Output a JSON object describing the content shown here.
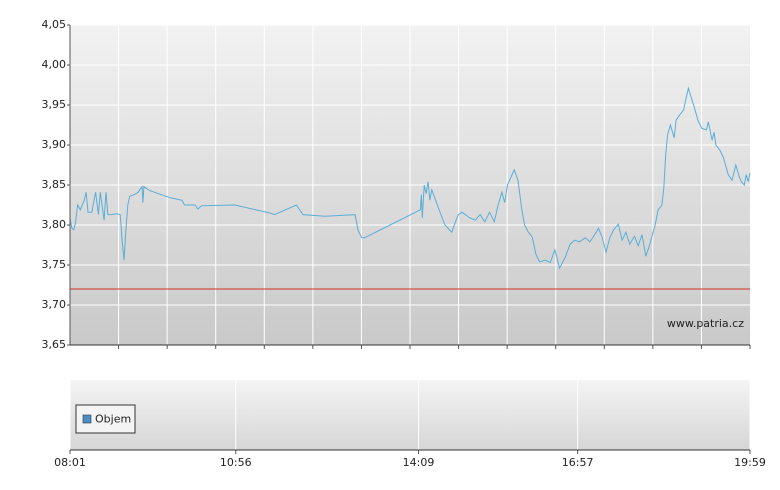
{
  "chart_data": [
    {
      "type": "line",
      "color": "#5aaed6",
      "grid": true,
      "xlim": [
        481,
        1199
      ],
      "ylim": [
        3.65,
        4.05
      ],
      "yticks": [
        {
          "value": 3.65,
          "label": "3,65"
        },
        {
          "value": 3.7,
          "label": "3,70"
        },
        {
          "value": 3.75,
          "label": "3,75"
        },
        {
          "value": 3.8,
          "label": "3,80"
        },
        {
          "value": 3.85,
          "label": "3,85"
        },
        {
          "value": 3.9,
          "label": "3,90"
        },
        {
          "value": 3.95,
          "label": "3,95"
        },
        {
          "value": 4.0,
          "label": "4,00"
        },
        {
          "value": 4.05,
          "label": "4,05"
        }
      ],
      "reference_line": {
        "value": 3.72,
        "color": "#d0301e"
      },
      "annotation": "www.patria.cz",
      "x": [
        481,
        483,
        485,
        487,
        489,
        492,
        496,
        498,
        500,
        504,
        508,
        511,
        513,
        517,
        519,
        521,
        525,
        530,
        534,
        536,
        538,
        540,
        542,
        544,
        549,
        553,
        557,
        558,
        559,
        565,
        587,
        599,
        602,
        613,
        616,
        620,
        655,
        692,
        697,
        720,
        727,
        750,
        782,
        785,
        789,
        792,
        851,
        852,
        853,
        855,
        857,
        859,
        861,
        863,
        867,
        872,
        877,
        884,
        888,
        891,
        895,
        903,
        909,
        914,
        919,
        924,
        929,
        933,
        937,
        940,
        943,
        950,
        954,
        958,
        961,
        965,
        969,
        973,
        977,
        983,
        988,
        993,
        998,
        1004,
        1009,
        1014,
        1019,
        1025,
        1030,
        1035,
        1039,
        1043,
        1047,
        1051,
        1055,
        1060,
        1064,
        1068,
        1072,
        1077,
        1081,
        1085,
        1089,
        1093,
        1099,
        1102,
        1106,
        1108,
        1110,
        1112,
        1115,
        1119,
        1121,
        1125,
        1129,
        1131,
        1134,
        1136,
        1140,
        1144,
        1148,
        1153,
        1155,
        1159,
        1161,
        1163,
        1167,
        1171,
        1176,
        1180,
        1182,
        1184,
        1188,
        1190,
        1193,
        1195,
        1197,
        1199
      ],
      "values": [
        3.809,
        3.796,
        3.794,
        3.804,
        3.825,
        3.819,
        3.831,
        3.841,
        3.816,
        3.816,
        3.841,
        3.813,
        3.841,
        3.806,
        3.841,
        3.813,
        3.813,
        3.814,
        3.813,
        3.781,
        3.756,
        3.794,
        3.825,
        3.836,
        3.838,
        3.841,
        3.848,
        3.828,
        3.848,
        3.843,
        3.834,
        3.831,
        3.825,
        3.825,
        3.82,
        3.824,
        3.825,
        3.815,
        3.813,
        3.825,
        3.813,
        3.811,
        3.813,
        3.794,
        3.784,
        3.784,
        3.819,
        3.838,
        3.809,
        3.85,
        3.839,
        3.854,
        3.831,
        3.844,
        3.831,
        3.815,
        3.8,
        3.791,
        3.804,
        3.813,
        3.816,
        3.809,
        3.806,
        3.813,
        3.804,
        3.816,
        3.804,
        3.825,
        3.841,
        3.828,
        3.85,
        3.869,
        3.856,
        3.819,
        3.8,
        3.791,
        3.785,
        3.763,
        3.754,
        3.756,
        3.753,
        3.769,
        3.746,
        3.76,
        3.776,
        3.781,
        3.779,
        3.784,
        3.779,
        3.788,
        3.796,
        3.784,
        3.766,
        3.784,
        3.794,
        3.801,
        3.781,
        3.791,
        3.776,
        3.786,
        3.774,
        3.788,
        3.761,
        3.775,
        3.801,
        3.819,
        3.825,
        3.846,
        3.888,
        3.913,
        3.925,
        3.909,
        3.931,
        3.938,
        3.944,
        3.956,
        3.971,
        3.963,
        3.948,
        3.931,
        3.921,
        3.919,
        3.929,
        3.906,
        3.916,
        3.9,
        3.894,
        3.884,
        3.863,
        3.856,
        3.865,
        3.875,
        3.859,
        3.854,
        3.85,
        3.863,
        3.854,
        3.865
      ]
    },
    {
      "type": "bar",
      "xlim": [
        481,
        1199
      ],
      "xticks": [
        {
          "value": 481,
          "label": "08:01"
        },
        {
          "value": 656,
          "label": "10:56"
        },
        {
          "value": 849,
          "label": "14:09"
        },
        {
          "value": 1017,
          "label": "16:57"
        },
        {
          "value": 1199,
          "label": "19:59"
        }
      ],
      "series": [
        {
          "name": "Objem",
          "color": "#4b8fc9",
          "values": []
        }
      ]
    }
  ]
}
